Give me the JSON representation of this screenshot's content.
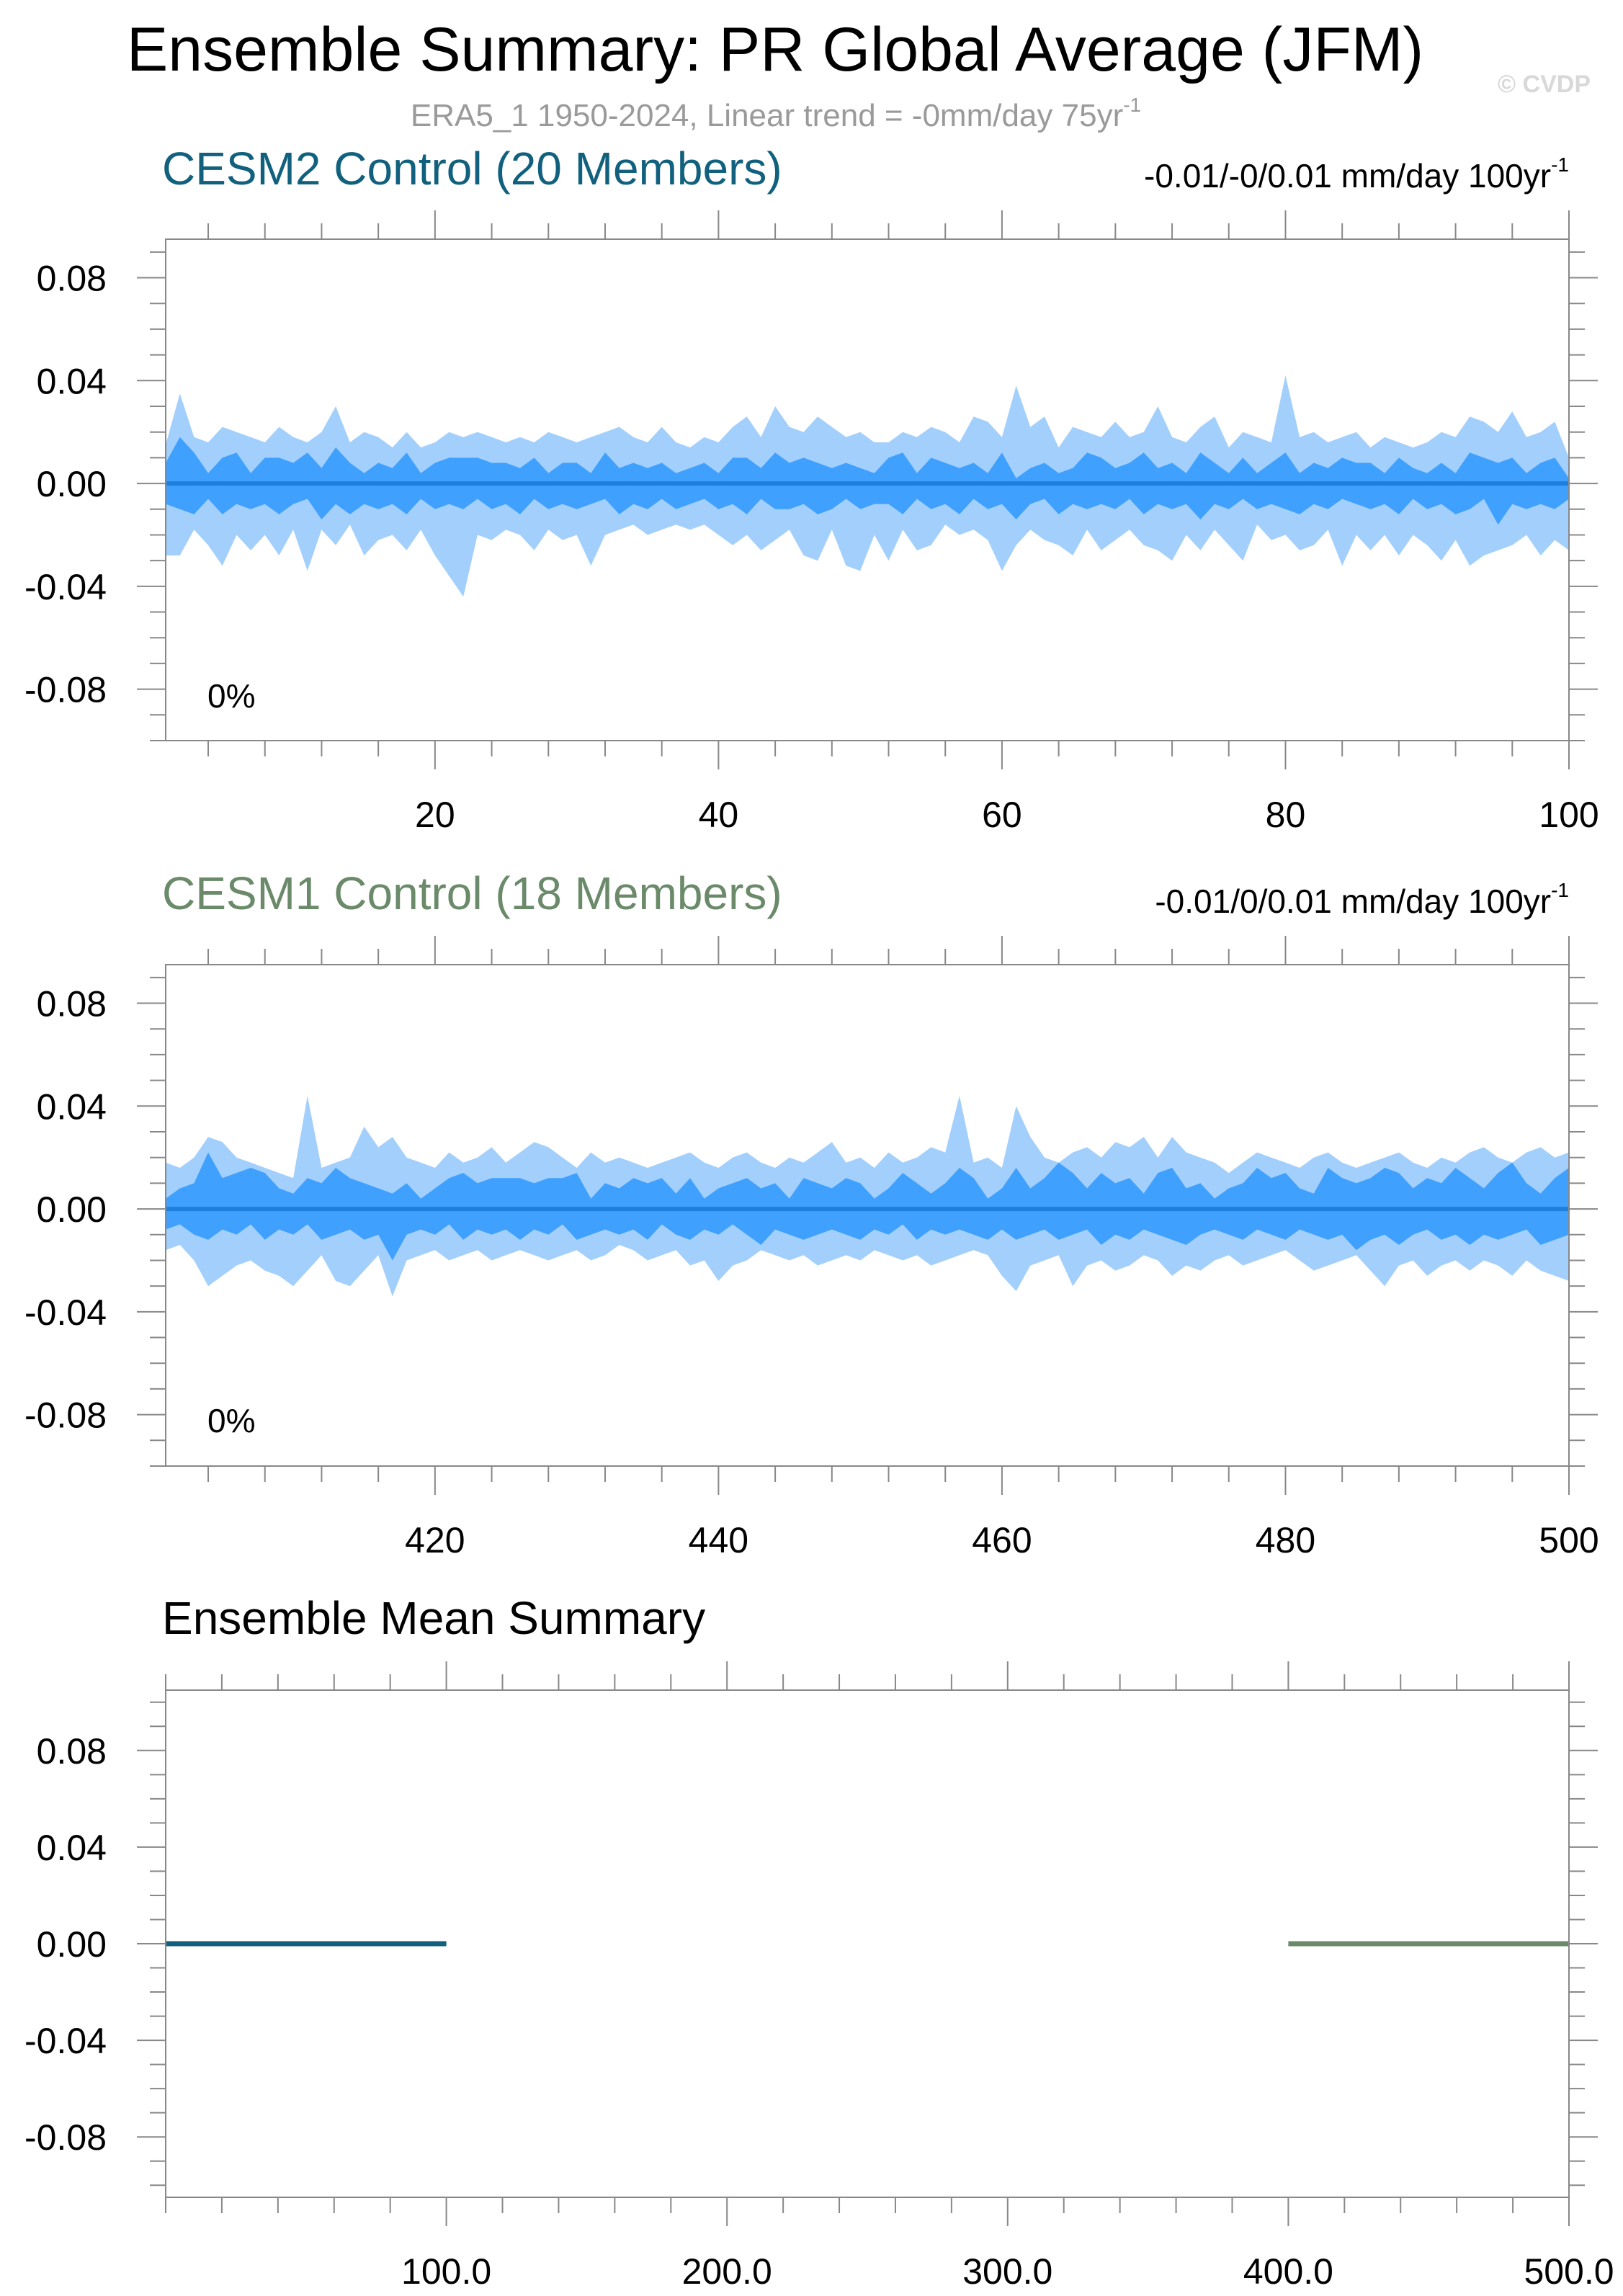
{
  "title": "Ensemble Summary: PR Global Average (JFM)",
  "subtitle": "ERA5_1 1950-2024, Linear trend = -0mm/day 75yr",
  "subtitle_sup": "-1",
  "copyright": "© CVDP",
  "colors": {
    "band_outer": "#a2cffb",
    "band_inner": "#3fa0fd",
    "mean_line": "#1f7fdf",
    "cesm2": "#11617e",
    "cesm1": "#6a8a6a",
    "axis": "#000000",
    "tick": "#888888"
  },
  "chart_data": [
    {
      "id": "cesm2",
      "type": "area",
      "title": "CESM2 Control (20 Members)",
      "title_color": "#11617e",
      "trend_label": "-0.01/-0/0.01 mm/day 100yr",
      "trend_sup": "-1",
      "percent_label": "0%",
      "x_start": 1,
      "x_step": 1,
      "xlim": [
        1,
        100
      ],
      "xticks": [
        20,
        40,
        60,
        80,
        100
      ],
      "xtick_labels": [
        "20",
        "40",
        "60",
        "80",
        "100"
      ],
      "ylim": [
        -0.1,
        0.095
      ],
      "yticks": [
        0.08,
        0.04,
        0.0,
        -0.04,
        -0.08
      ],
      "ytick_labels": [
        "0.08",
        "0.04",
        "0.00",
        "-0.04",
        "-0.08"
      ],
      "mean": 0.0,
      "outer_upper": [
        0.015,
        0.035,
        0.018,
        0.016,
        0.022,
        0.02,
        0.018,
        0.016,
        0.022,
        0.018,
        0.016,
        0.02,
        0.03,
        0.016,
        0.02,
        0.018,
        0.014,
        0.02,
        0.014,
        0.016,
        0.02,
        0.018,
        0.02,
        0.018,
        0.016,
        0.018,
        0.016,
        0.02,
        0.018,
        0.016,
        0.018,
        0.02,
        0.022,
        0.018,
        0.016,
        0.022,
        0.016,
        0.014,
        0.018,
        0.016,
        0.022,
        0.026,
        0.018,
        0.03,
        0.022,
        0.02,
        0.026,
        0.022,
        0.018,
        0.02,
        0.016,
        0.016,
        0.02,
        0.018,
        0.022,
        0.02,
        0.016,
        0.026,
        0.024,
        0.018,
        0.038,
        0.022,
        0.026,
        0.014,
        0.022,
        0.02,
        0.018,
        0.024,
        0.018,
        0.02,
        0.03,
        0.018,
        0.016,
        0.022,
        0.026,
        0.014,
        0.02,
        0.018,
        0.016,
        0.042,
        0.018,
        0.02,
        0.016,
        0.018,
        0.02,
        0.014,
        0.018,
        0.016,
        0.014,
        0.016,
        0.02,
        0.018,
        0.026,
        0.024,
        0.02,
        0.028,
        0.018,
        0.02,
        0.024,
        0.01
      ],
      "inner_upper": [
        0.008,
        0.018,
        0.012,
        0.004,
        0.01,
        0.012,
        0.004,
        0.01,
        0.01,
        0.008,
        0.012,
        0.006,
        0.014,
        0.008,
        0.004,
        0.008,
        0.006,
        0.012,
        0.004,
        0.008,
        0.01,
        0.01,
        0.01,
        0.008,
        0.008,
        0.006,
        0.01,
        0.004,
        0.008,
        0.008,
        0.004,
        0.012,
        0.006,
        0.008,
        0.006,
        0.008,
        0.004,
        0.006,
        0.008,
        0.004,
        0.01,
        0.01,
        0.006,
        0.012,
        0.008,
        0.01,
        0.008,
        0.006,
        0.008,
        0.006,
        0.004,
        0.01,
        0.012,
        0.004,
        0.01,
        0.008,
        0.006,
        0.008,
        0.004,
        0.012,
        0.002,
        0.006,
        0.008,
        0.004,
        0.006,
        0.012,
        0.01,
        0.006,
        0.008,
        0.012,
        0.006,
        0.008,
        0.004,
        0.012,
        0.008,
        0.004,
        0.01,
        0.004,
        0.008,
        0.012,
        0.004,
        0.008,
        0.006,
        0.01,
        0.008,
        0.008,
        0.004,
        0.01,
        0.006,
        0.004,
        0.008,
        0.004,
        0.012,
        0.01,
        0.008,
        0.01,
        0.004,
        0.008,
        0.01,
        0.002
      ],
      "inner_lower": [
        -0.008,
        -0.01,
        -0.012,
        -0.006,
        -0.012,
        -0.008,
        -0.01,
        -0.008,
        -0.012,
        -0.008,
        -0.006,
        -0.014,
        -0.008,
        -0.012,
        -0.008,
        -0.01,
        -0.008,
        -0.012,
        -0.006,
        -0.01,
        -0.008,
        -0.01,
        -0.006,
        -0.01,
        -0.008,
        -0.012,
        -0.006,
        -0.01,
        -0.008,
        -0.01,
        -0.008,
        -0.006,
        -0.012,
        -0.008,
        -0.01,
        -0.006,
        -0.01,
        -0.008,
        -0.006,
        -0.01,
        -0.008,
        -0.012,
        -0.006,
        -0.01,
        -0.01,
        -0.008,
        -0.012,
        -0.01,
        -0.006,
        -0.01,
        -0.008,
        -0.008,
        -0.012,
        -0.006,
        -0.01,
        -0.008,
        -0.012,
        -0.006,
        -0.01,
        -0.008,
        -0.014,
        -0.008,
        -0.006,
        -0.012,
        -0.008,
        -0.01,
        -0.008,
        -0.01,
        -0.006,
        -0.012,
        -0.008,
        -0.01,
        -0.008,
        -0.014,
        -0.008,
        -0.01,
        -0.006,
        -0.01,
        -0.008,
        -0.01,
        -0.012,
        -0.008,
        -0.01,
        -0.006,
        -0.008,
        -0.01,
        -0.008,
        -0.012,
        -0.006,
        -0.01,
        -0.008,
        -0.012,
        -0.01,
        -0.006,
        -0.016,
        -0.008,
        -0.01,
        -0.008,
        -0.01,
        -0.006
      ],
      "outer_lower": [
        -0.028,
        -0.028,
        -0.018,
        -0.024,
        -0.032,
        -0.02,
        -0.026,
        -0.02,
        -0.028,
        -0.018,
        -0.034,
        -0.018,
        -0.024,
        -0.016,
        -0.028,
        -0.022,
        -0.02,
        -0.026,
        -0.018,
        -0.028,
        -0.036,
        -0.044,
        -0.02,
        -0.022,
        -0.018,
        -0.02,
        -0.026,
        -0.018,
        -0.022,
        -0.02,
        -0.032,
        -0.02,
        -0.018,
        -0.016,
        -0.02,
        -0.018,
        -0.016,
        -0.018,
        -0.016,
        -0.02,
        -0.024,
        -0.02,
        -0.026,
        -0.022,
        -0.018,
        -0.028,
        -0.03,
        -0.018,
        -0.032,
        -0.034,
        -0.02,
        -0.03,
        -0.018,
        -0.026,
        -0.024,
        -0.016,
        -0.02,
        -0.018,
        -0.022,
        -0.034,
        -0.024,
        -0.018,
        -0.022,
        -0.024,
        -0.028,
        -0.018,
        -0.026,
        -0.022,
        -0.018,
        -0.024,
        -0.026,
        -0.03,
        -0.02,
        -0.026,
        -0.018,
        -0.024,
        -0.03,
        -0.016,
        -0.022,
        -0.02,
        -0.026,
        -0.024,
        -0.018,
        -0.032,
        -0.02,
        -0.026,
        -0.02,
        -0.028,
        -0.02,
        -0.024,
        -0.03,
        -0.022,
        -0.032,
        -0.028,
        -0.026,
        -0.024,
        -0.02,
        -0.028,
        -0.022,
        -0.026
      ]
    },
    {
      "id": "cesm1",
      "type": "area",
      "title": "CESM1 Control (18 Members)",
      "title_color": "#6a8a6a",
      "trend_label": "-0.01/0/0.01 mm/day 100yr",
      "trend_sup": "-1",
      "percent_label": "0%",
      "x_start": 401,
      "x_step": 1,
      "xlim": [
        401,
        500
      ],
      "xticks": [
        420,
        440,
        460,
        480,
        500
      ],
      "xtick_labels": [
        "420",
        "440",
        "460",
        "480",
        "500"
      ],
      "ylim": [
        -0.1,
        0.095
      ],
      "yticks": [
        0.08,
        0.04,
        0.0,
        -0.04,
        -0.08
      ],
      "ytick_labels": [
        "0.08",
        "0.04",
        "0.00",
        "-0.04",
        "-0.08"
      ],
      "mean": 0.0,
      "outer_upper": [
        0.018,
        0.016,
        0.02,
        0.028,
        0.026,
        0.02,
        0.018,
        0.016,
        0.014,
        0.012,
        0.044,
        0.016,
        0.018,
        0.02,
        0.032,
        0.024,
        0.028,
        0.02,
        0.018,
        0.016,
        0.022,
        0.018,
        0.02,
        0.024,
        0.018,
        0.022,
        0.026,
        0.024,
        0.02,
        0.016,
        0.022,
        0.018,
        0.02,
        0.018,
        0.016,
        0.018,
        0.02,
        0.022,
        0.018,
        0.016,
        0.02,
        0.022,
        0.018,
        0.016,
        0.02,
        0.018,
        0.022,
        0.026,
        0.018,
        0.02,
        0.016,
        0.022,
        0.018,
        0.02,
        0.024,
        0.022,
        0.044,
        0.018,
        0.02,
        0.016,
        0.04,
        0.028,
        0.02,
        0.018,
        0.022,
        0.024,
        0.02,
        0.026,
        0.024,
        0.028,
        0.02,
        0.028,
        0.022,
        0.02,
        0.018,
        0.014,
        0.018,
        0.022,
        0.02,
        0.018,
        0.016,
        0.02,
        0.022,
        0.018,
        0.016,
        0.018,
        0.02,
        0.022,
        0.018,
        0.016,
        0.02,
        0.018,
        0.022,
        0.024,
        0.02,
        0.018,
        0.022,
        0.024,
        0.02,
        0.022
      ],
      "inner_upper": [
        0.004,
        0.008,
        0.01,
        0.022,
        0.012,
        0.014,
        0.016,
        0.014,
        0.008,
        0.006,
        0.012,
        0.01,
        0.016,
        0.012,
        0.01,
        0.008,
        0.006,
        0.01,
        0.004,
        0.008,
        0.012,
        0.014,
        0.01,
        0.012,
        0.012,
        0.012,
        0.01,
        0.012,
        0.012,
        0.014,
        0.004,
        0.01,
        0.008,
        0.012,
        0.01,
        0.012,
        0.006,
        0.012,
        0.004,
        0.008,
        0.01,
        0.012,
        0.008,
        0.01,
        0.004,
        0.012,
        0.01,
        0.008,
        0.012,
        0.01,
        0.004,
        0.008,
        0.014,
        0.01,
        0.006,
        0.01,
        0.016,
        0.012,
        0.004,
        0.008,
        0.016,
        0.008,
        0.012,
        0.018,
        0.014,
        0.008,
        0.014,
        0.01,
        0.012,
        0.006,
        0.014,
        0.016,
        0.008,
        0.01,
        0.004,
        0.008,
        0.01,
        0.016,
        0.012,
        0.014,
        0.008,
        0.006,
        0.016,
        0.012,
        0.01,
        0.012,
        0.016,
        0.014,
        0.008,
        0.012,
        0.01,
        0.016,
        0.012,
        0.008,
        0.014,
        0.018,
        0.01,
        0.006,
        0.012,
        0.016
      ],
      "inner_lower": [
        -0.008,
        -0.006,
        -0.01,
        -0.012,
        -0.008,
        -0.01,
        -0.006,
        -0.012,
        -0.008,
        -0.01,
        -0.006,
        -0.012,
        -0.01,
        -0.008,
        -0.012,
        -0.01,
        -0.02,
        -0.01,
        -0.008,
        -0.01,
        -0.006,
        -0.012,
        -0.008,
        -0.01,
        -0.008,
        -0.012,
        -0.008,
        -0.01,
        -0.006,
        -0.012,
        -0.01,
        -0.008,
        -0.01,
        -0.008,
        -0.012,
        -0.006,
        -0.01,
        -0.012,
        -0.008,
        -0.01,
        -0.006,
        -0.01,
        -0.014,
        -0.008,
        -0.01,
        -0.012,
        -0.01,
        -0.008,
        -0.01,
        -0.012,
        -0.008,
        -0.01,
        -0.006,
        -0.012,
        -0.008,
        -0.01,
        -0.008,
        -0.01,
        -0.012,
        -0.008,
        -0.012,
        -0.01,
        -0.008,
        -0.012,
        -0.01,
        -0.008,
        -0.014,
        -0.01,
        -0.012,
        -0.008,
        -0.01,
        -0.012,
        -0.014,
        -0.01,
        -0.008,
        -0.01,
        -0.012,
        -0.008,
        -0.01,
        -0.012,
        -0.008,
        -0.01,
        -0.012,
        -0.01,
        -0.016,
        -0.012,
        -0.01,
        -0.014,
        -0.01,
        -0.008,
        -0.012,
        -0.01,
        -0.014,
        -0.01,
        -0.012,
        -0.01,
        -0.008,
        -0.014,
        -0.012,
        -0.01
      ],
      "outer_lower": [
        -0.016,
        -0.014,
        -0.02,
        -0.03,
        -0.026,
        -0.022,
        -0.02,
        -0.024,
        -0.026,
        -0.03,
        -0.024,
        -0.018,
        -0.028,
        -0.03,
        -0.024,
        -0.018,
        -0.034,
        -0.02,
        -0.018,
        -0.016,
        -0.02,
        -0.018,
        -0.016,
        -0.02,
        -0.018,
        -0.016,
        -0.018,
        -0.02,
        -0.018,
        -0.016,
        -0.02,
        -0.018,
        -0.014,
        -0.016,
        -0.02,
        -0.018,
        -0.016,
        -0.022,
        -0.02,
        -0.028,
        -0.022,
        -0.02,
        -0.016,
        -0.018,
        -0.02,
        -0.018,
        -0.022,
        -0.02,
        -0.018,
        -0.02,
        -0.016,
        -0.018,
        -0.02,
        -0.018,
        -0.022,
        -0.02,
        -0.018,
        -0.016,
        -0.018,
        -0.026,
        -0.032,
        -0.022,
        -0.02,
        -0.018,
        -0.03,
        -0.022,
        -0.02,
        -0.024,
        -0.022,
        -0.018,
        -0.02,
        -0.026,
        -0.022,
        -0.024,
        -0.02,
        -0.018,
        -0.022,
        -0.02,
        -0.018,
        -0.016,
        -0.02,
        -0.024,
        -0.022,
        -0.02,
        -0.018,
        -0.024,
        -0.03,
        -0.022,
        -0.02,
        -0.026,
        -0.022,
        -0.02,
        -0.024,
        -0.02,
        -0.022,
        -0.026,
        -0.02,
        -0.024,
        -0.026,
        -0.028
      ]
    },
    {
      "id": "summary",
      "type": "line",
      "title": "Ensemble Mean Summary",
      "title_color": "#000000",
      "xlim": [
        0,
        500
      ],
      "xticks": [
        100,
        200,
        300,
        400,
        500
      ],
      "xtick_labels": [
        "100.0",
        "200.0",
        "300.0",
        "400.0",
        "500.0"
      ],
      "ylim": [
        -0.105,
        0.105
      ],
      "yticks": [
        0.08,
        0.04,
        0.0,
        -0.04,
        -0.08
      ],
      "ytick_labels": [
        "0.08",
        "0.04",
        "0.00",
        "-0.04",
        "-0.08"
      ],
      "series": [
        {
          "name": "CESM2 Control",
          "color": "#11617e",
          "x": [
            0,
            100
          ],
          "y": [
            0.0,
            0.0
          ]
        },
        {
          "name": "CESM1 Control",
          "color": "#6a8a6a",
          "x": [
            400,
            500
          ],
          "y": [
            0.0,
            0.0
          ]
        }
      ]
    }
  ]
}
